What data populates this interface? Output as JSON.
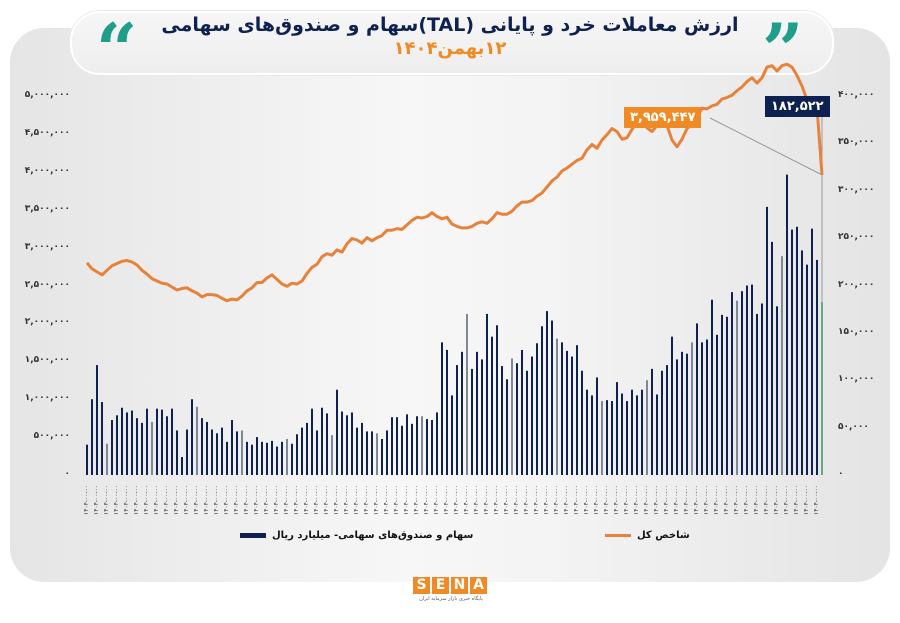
{
  "header": {
    "title": "ارزش معاملات خرد و پایانی (TAL)سهام و صندوق‌های سهامی",
    "subtitle": "۱۲بهمن۱۴۰۴",
    "quote_left": "“",
    "quote_right": "”"
  },
  "callouts": {
    "index_last": "۳,۹۵۹,۴۴۷",
    "bar_last": "۱۸۲,۵۲۲"
  },
  "legend": {
    "bars": "سهام و صندوق‌های سهامی-  میلیارد ریال",
    "line": "شاخص کل"
  },
  "footer": {
    "brand_letters": [
      "S",
      "E",
      "N",
      "A"
    ],
    "tagline": "پایگاه خبری بازار سرمایه ایران"
  },
  "colors": {
    "bar": "#0e2150",
    "bar_alt": "#7f8796",
    "bar_last": "#3fb27a",
    "line": "#e8823a",
    "accent": "#f08a24",
    "quote": "#1f9e8a"
  },
  "chart_data": {
    "type": "bar+line",
    "title": "ارزش معاملات خرد و پایانی (TAL)سهام و صندوق‌های سهامی",
    "subtitle": "۱۲بهمن۱۴۰۴",
    "xlabel": "",
    "left_axis": {
      "label": "شاخص کل",
      "range": [
        0,
        5000000
      ],
      "ticks": [
        "۰",
        "۵۰۰,۰۰۰",
        "۱,۰۰۰,۰۰۰",
        "۱,۵۰۰,۰۰۰",
        "۲,۰۰۰,۰۰۰",
        "۲,۵۰۰,۰۰۰",
        "۳,۰۰۰,۰۰۰",
        "۳,۵۰۰,۰۰۰",
        "۴,۰۰۰,۰۰۰",
        "۴,۵۰۰,۰۰۰",
        "۵,۰۰۰,۰۰۰"
      ]
    },
    "right_axis": {
      "label": "سهام و صندوق‌های سهامی- میلیارد ریال",
      "range": [
        0,
        400000
      ],
      "ticks": [
        "۰",
        "۵۰,۰۰۰",
        "۱۰۰,۰۰۰",
        "۱۵۰,۰۰۰",
        "۲۰۰,۰۰۰",
        "۲۵۰,۰۰۰",
        "۳۰۰,۰۰۰",
        "۳۵۰,۰۰۰",
        "۴۰۰,۰۰۰"
      ]
    },
    "x_first_label": "۱۴۰۴-۰۴-۰۸",
    "x_last_label": "۱۴۰۴-۱۱-۱۲",
    "series": [
      {
        "name": "سهام و صندوق‌های سهامی- میلیارد ریال",
        "axis": "right",
        "kind": "bar",
        "values": [
          32000,
          80000,
          116000,
          77000,
          33000,
          58000,
          63000,
          71000,
          66000,
          68000,
          60000,
          55000,
          70000,
          56000,
          70000,
          69000,
          62000,
          70000,
          47000,
          19000,
          48000,
          80000,
          72000,
          60000,
          56000,
          48000,
          44000,
          50000,
          35000,
          58000,
          46000,
          47000,
          35000,
          32000,
          40000,
          35000,
          34000,
          36000,
          30000,
          35000,
          38000,
          33000,
          43000,
          50000,
          55000,
          70000,
          47000,
          71000,
          65000,
          42000,
          90000,
          67000,
          63000,
          66000,
          50000,
          55000,
          46000,
          46000,
          44000,
          38000,
          47000,
          61000,
          61000,
          52000,
          64000,
          54000,
          62000,
          62000,
          59000,
          58000,
          66000,
          140000,
          132000,
          84000,
          116000,
          130000,
          170000,
          112000,
          130000,
          122000,
          170000,
          146000,
          158000,
          115000,
          101000,
          123000,
          118000,
          132000,
          110000,
          125000,
          139000,
          157000,
          173000,
          163000,
          144000,
          140000,
          131000,
          125000,
          137000,
          110000,
          90000,
          84000,
          103000,
          78000,
          79000,
          78000,
          98000,
          86000,
          78000,
          90000,
          84000,
          90000,
          100000,
          112000,
          85000,
          110000,
          116000,
          146000,
          122000,
          130000,
          128000,
          140000,
          160000,
          140000,
          143000,
          185000,
          148000,
          169000,
          167000,
          193000,
          184000,
          194000,
          200000,
          201000,
          170000,
          181000,
          283000,
          246000,
          178000,
          231000,
          317000,
          259000,
          262000,
          237000,
          222000,
          260000,
          227000,
          182522
        ],
        "last_value_label": "۱۸۲,۵۲۲"
      },
      {
        "name": "شاخص کل",
        "axis": "left",
        "kind": "line",
        "values": [
          2800000,
          2720000,
          2680000,
          2640000,
          2700000,
          2760000,
          2790000,
          2820000,
          2830000,
          2810000,
          2770000,
          2700000,
          2650000,
          2590000,
          2560000,
          2530000,
          2520000,
          2480000,
          2440000,
          2460000,
          2470000,
          2430000,
          2400000,
          2350000,
          2380000,
          2380000,
          2370000,
          2330000,
          2300000,
          2320000,
          2310000,
          2360000,
          2430000,
          2470000,
          2540000,
          2540000,
          2600000,
          2640000,
          2580000,
          2520000,
          2490000,
          2530000,
          2520000,
          2560000,
          2660000,
          2740000,
          2780000,
          2880000,
          2920000,
          2900000,
          2970000,
          2940000,
          3050000,
          3120000,
          3100000,
          3060000,
          3130000,
          3090000,
          3130000,
          3160000,
          3230000,
          3230000,
          3250000,
          3240000,
          3300000,
          3360000,
          3400000,
          3390000,
          3410000,
          3460000,
          3410000,
          3380000,
          3400000,
          3310000,
          3280000,
          3260000,
          3260000,
          3280000,
          3320000,
          3340000,
          3320000,
          3380000,
          3460000,
          3440000,
          3440000,
          3480000,
          3550000,
          3600000,
          3600000,
          3620000,
          3680000,
          3720000,
          3800000,
          3880000,
          3930000,
          4010000,
          4050000,
          4100000,
          4150000,
          4180000,
          4290000,
          4360000,
          4310000,
          4420000,
          4490000,
          4570000,
          4530000,
          4430000,
          4450000,
          4560000,
          4660000,
          4680000,
          4580000,
          4530000,
          4610000,
          4640000,
          4610000,
          4420000,
          4330000,
          4430000,
          4570000,
          4630000,
          4720000,
          4840000,
          4830000,
          4870000,
          4890000,
          4960000,
          4980000,
          5010000,
          5070000,
          5120000,
          5190000,
          5240000,
          5170000,
          5240000,
          5380000,
          5400000,
          5330000,
          5400000,
          5420000,
          5380000,
          5270000,
          5130000,
          4950000,
          4880000,
          4850000,
          3959447
        ],
        "last_value_label": "۳,۹۵۹,۴۴۷"
      }
    ],
    "legend_position": "bottom",
    "grid": false
  }
}
